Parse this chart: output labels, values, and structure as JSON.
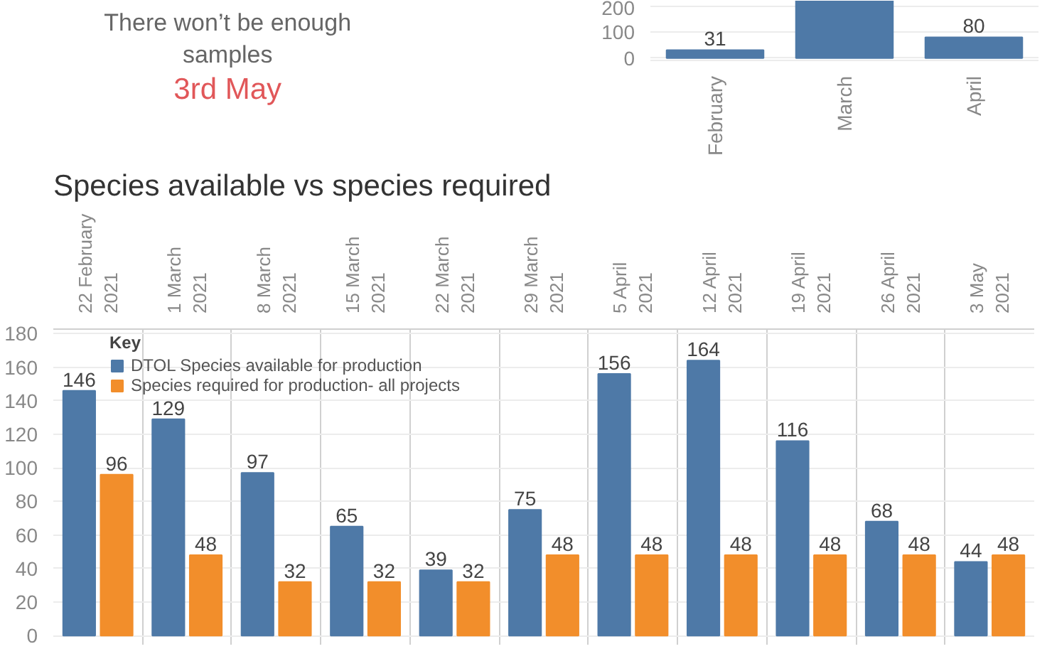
{
  "chart_data": [
    {
      "type": "other",
      "title": "There won’t be enough samples",
      "subtitle": "3rd May",
      "color": "#e15759"
    },
    {
      "type": "bar",
      "categories": [
        "February",
        "March",
        "April"
      ],
      "values": [
        31,
        220,
        80
      ],
      "value_labels": [
        "31",
        null,
        "80"
      ],
      "color": "#4e79a7",
      "ylim": [
        0,
        220
      ],
      "yticks": [
        0,
        100,
        200
      ],
      "grid": "y"
    },
    {
      "type": "bar",
      "title": "Species available vs species required",
      "categories": [
        "22 February 2021",
        "1 March 2021",
        "8 March 2021",
        "15 March 2021",
        "22 March 2021",
        "29 March 2021",
        "5 April 2021",
        "12 April 2021",
        "19 April 2021",
        "26 April 2021",
        "3 May 2021"
      ],
      "series": [
        {
          "name": "DTOL Species available for production",
          "color": "#4e79a7",
          "values": [
            146,
            129,
            97,
            65,
            39,
            75,
            156,
            164,
            116,
            68,
            44
          ]
        },
        {
          "name": "Species required for production- all projects",
          "color": "#f28e2b",
          "values": [
            96,
            48,
            32,
            32,
            32,
            48,
            48,
            48,
            48,
            48,
            48
          ]
        }
      ],
      "legend_title": "Key",
      "legend": "top left",
      "data_labels": true,
      "ylim": [
        0,
        180
      ],
      "yticks": [
        0,
        20,
        40,
        60,
        80,
        100,
        120,
        140,
        160,
        180
      ],
      "grid": true
    }
  ]
}
